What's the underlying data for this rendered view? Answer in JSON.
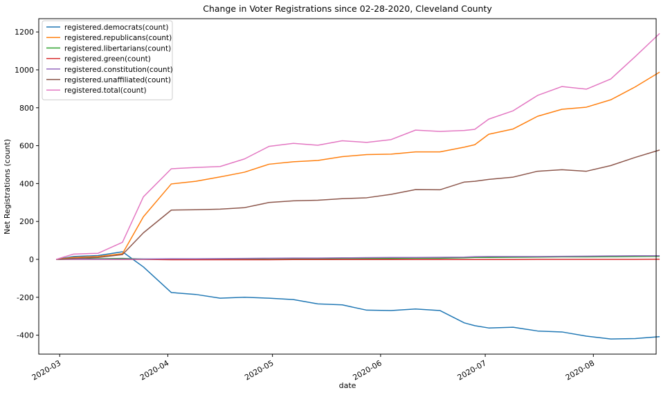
{
  "chart_data": {
    "type": "line",
    "title": "Change in Voter Registrations since 02-28-2020, Cleveland County",
    "xlabel": "date",
    "ylabel": "Net Registrations (count)",
    "ylim": [
      -500,
      1270
    ],
    "xlim_days": [
      -5,
      172
    ],
    "x_ticks": [
      {
        "label": "2020-03",
        "day": 1
      },
      {
        "label": "2020-04",
        "day": 32
      },
      {
        "label": "2020-05",
        "day": 62
      },
      {
        "label": "2020-06",
        "day": 93
      },
      {
        "label": "2020-07",
        "day": 123
      },
      {
        "label": "2020-08",
        "day": 154
      }
    ],
    "y_ticks": [
      -400,
      -200,
      0,
      200,
      400,
      600,
      800,
      1000,
      1200
    ],
    "x_days": [
      0,
      5,
      12,
      19,
      25,
      33,
      40,
      47,
      54,
      61,
      68,
      75,
      82,
      89,
      96,
      103,
      110,
      117,
      120,
      124,
      131,
      138,
      145,
      152,
      159,
      166,
      173
    ],
    "legend_location": "upper-left",
    "series": [
      {
        "name": "registered.democrats(count)",
        "color": "#1f77b4",
        "values": [
          0,
          15,
          20,
          40,
          -40,
          -175,
          -185,
          -205,
          -200,
          -205,
          -212,
          -235,
          -240,
          -268,
          -270,
          -262,
          -270,
          -335,
          -350,
          -362,
          -358,
          -378,
          -383,
          -405,
          -420,
          -418,
          -408
        ]
      },
      {
        "name": "registered.republicans(count)",
        "color": "#ff7f0e",
        "values": [
          0,
          10,
          15,
          30,
          225,
          398,
          412,
          435,
          460,
          502,
          515,
          522,
          542,
          553,
          555,
          567,
          567,
          592,
          605,
          660,
          688,
          755,
          792,
          803,
          842,
          910,
          988
        ]
      },
      {
        "name": "registered.libertarians(count)",
        "color": "#2ca02c",
        "values": [
          0,
          2,
          3,
          5,
          2,
          0,
          1,
          2,
          2,
          3,
          4,
          4,
          5,
          5,
          5,
          6,
          6,
          8,
          10,
          10,
          11,
          12,
          13,
          13,
          14,
          15,
          16
        ]
      },
      {
        "name": "registered.green(count)",
        "color": "#d62728",
        "values": [
          0,
          0,
          0,
          0,
          0,
          -2,
          -2,
          -2,
          -2,
          -2,
          -1,
          -1,
          -1,
          -1,
          -1,
          -1,
          -1,
          -1,
          -1,
          -1,
          -1,
          0,
          0,
          0,
          0,
          0,
          1
        ]
      },
      {
        "name": "registered.constitution(count)",
        "color": "#9467bd",
        "values": [
          0,
          1,
          1,
          2,
          2,
          3,
          3,
          4,
          5,
          6,
          7,
          7,
          8,
          9,
          10,
          10,
          11,
          12,
          14,
          15,
          15,
          15,
          16,
          17,
          18,
          19,
          19
        ]
      },
      {
        "name": "registered.unaffiliated(count)",
        "color": "#8c564b",
        "values": [
          0,
          5,
          10,
          25,
          140,
          260,
          262,
          265,
          273,
          300,
          309,
          312,
          320,
          325,
          343,
          368,
          367,
          408,
          412,
          422,
          434,
          465,
          473,
          465,
          495,
          538,
          577
        ]
      },
      {
        "name": "registered.total(count)",
        "color": "#e377c2",
        "values": [
          0,
          28,
          32,
          90,
          330,
          478,
          485,
          490,
          530,
          596,
          612,
          602,
          626,
          617,
          632,
          682,
          675,
          680,
          686,
          740,
          784,
          865,
          912,
          898,
          952,
          1070,
          1192
        ]
      }
    ]
  }
}
